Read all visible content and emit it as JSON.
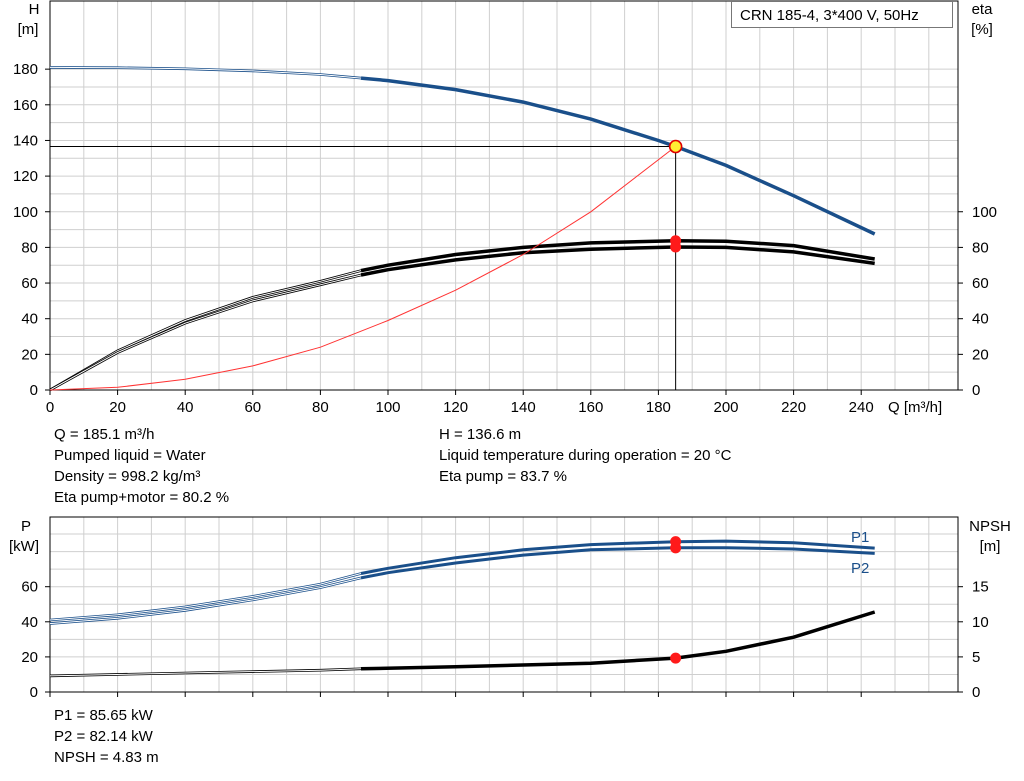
{
  "legend": {
    "text": "CRN 185-4, 3*400 V, 50Hz"
  },
  "chart_data": [
    {
      "type": "line",
      "id": "head-efficiency",
      "xlabel": "Q [m³/h]",
      "ylabel": [
        "H",
        "[m]"
      ],
      "y2label": [
        "eta",
        "[%]"
      ],
      "xlim": [
        0,
        250
      ],
      "ylim": [
        0,
        190
      ],
      "y2lim": [
        0,
        190
      ],
      "x_ticks": [
        0,
        20,
        40,
        60,
        80,
        100,
        120,
        140,
        160,
        180,
        200,
        220,
        240
      ],
      "y_ticks": [
        0,
        20,
        40,
        60,
        80,
        100,
        120,
        140,
        160,
        180
      ],
      "y2_ticks": [
        0,
        20,
        40,
        60,
        80,
        100
      ],
      "grid": true,
      "operating_point": {
        "q": 185.1,
        "h": 136.6
      },
      "series": [
        {
          "key": "head",
          "color": "#1a4f8a",
          "x": [
            0,
            20,
            40,
            60,
            80,
            92,
            100,
            120,
            140,
            160,
            180,
            185.1,
            200,
            220,
            244
          ],
          "y": [
            181,
            180.8,
            180.2,
            179,
            177,
            175,
            173.6,
            168.5,
            161.5,
            152,
            140,
            136.6,
            126,
            109,
            87.5
          ]
        },
        {
          "key": "eta-pump",
          "axis": "y2",
          "color": "#000000",
          "x": [
            0,
            20,
            40,
            60,
            80,
            92,
            100,
            120,
            140,
            160,
            185.1,
            200,
            220,
            244
          ],
          "y": [
            0,
            22,
            39,
            52,
            61,
            67,
            70,
            76,
            80,
            82.5,
            83.7,
            83.5,
            81,
            73.5
          ]
        },
        {
          "key": "eta-pump-motor",
          "axis": "y2",
          "color": "#000000",
          "x": [
            0,
            20,
            40,
            60,
            80,
            92,
            100,
            120,
            140,
            160,
            185.1,
            200,
            220,
            244
          ],
          "y": [
            0,
            21,
            37.5,
            50,
            59,
            64.5,
            67.5,
            73,
            77,
            79,
            80.2,
            80,
            77.5,
            71
          ]
        },
        {
          "key": "system-curve",
          "color": "#ff3333",
          "x": [
            0,
            20,
            40,
            60,
            80,
            92,
            100,
            120,
            140,
            160,
            185.1
          ],
          "y": [
            0,
            1.5,
            6,
            13.5,
            24,
            33,
            39,
            56,
            76,
            100,
            136.6
          ]
        }
      ]
    },
    {
      "type": "line",
      "id": "power-npsh",
      "ylabel": [
        "P",
        "[kW]"
      ],
      "y2label": [
        "NPSH",
        "[m]"
      ],
      "xlim": [
        0,
        250
      ],
      "ylim": [
        0,
        90
      ],
      "y2lim": [
        0,
        22.5
      ],
      "y_ticks": [
        0,
        20,
        40,
        60
      ],
      "y2_ticks": [
        0,
        5,
        10,
        15
      ],
      "grid": true,
      "series": [
        {
          "key": "p1",
          "name": "P1",
          "color": "#1a4f8a",
          "x": [
            0,
            20,
            40,
            60,
            80,
            92,
            100,
            120,
            140,
            160,
            185.1,
            200,
            220,
            244
          ],
          "y": [
            41,
            44,
            48.5,
            54.5,
            61.5,
            67.5,
            70.5,
            76.5,
            81,
            84,
            85.65,
            86,
            85,
            82
          ]
        },
        {
          "key": "p2",
          "name": "P2",
          "color": "#1a4f8a",
          "x": [
            0,
            20,
            40,
            60,
            80,
            92,
            100,
            120,
            140,
            160,
            185.1,
            200,
            220,
            244
          ],
          "y": [
            39,
            42,
            46.5,
            52.5,
            59.5,
            65,
            68,
            73.5,
            78,
            81,
            82.14,
            82.2,
            81.5,
            79
          ]
        },
        {
          "key": "npsh",
          "axis": "y2",
          "color": "#000000",
          "x": [
            0,
            40,
            80,
            92,
            120,
            160,
            185.1,
            200,
            220,
            244
          ],
          "y": [
            2.3,
            2.7,
            3.1,
            3.3,
            3.6,
            4.1,
            4.83,
            5.8,
            7.8,
            11.4
          ]
        }
      ]
    }
  ],
  "info_top_left": [
    "Q = 185.1 m³/h",
    "Pumped liquid = Water",
    "Density = 998.2 kg/m³",
    "Eta pump+motor = 80.2 %"
  ],
  "info_top_right": [
    "H = 136.6 m",
    "Liquid temperature during operation = 20 °C",
    "Eta pump = 83.7 %"
  ],
  "info_bottom": [
    "P1 = 85.65 kW",
    "P2 = 82.14 kW",
    "NPSH = 4.83 m"
  ]
}
